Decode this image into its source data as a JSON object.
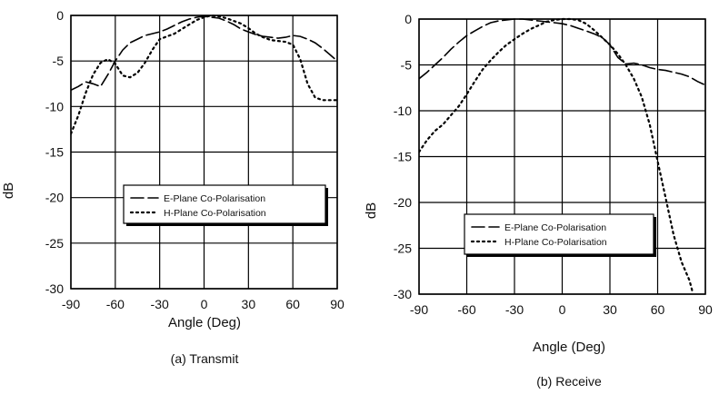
{
  "chart_data": [
    {
      "type": "line",
      "caption": "(a) Transmit",
      "xlabel": "Angle (Deg)",
      "ylabel": "dB",
      "xlim": [
        -90,
        90
      ],
      "ylim": [
        -30,
        0
      ],
      "xticks": [
        -90,
        -60,
        -30,
        0,
        30,
        60,
        90
      ],
      "yticks": [
        0,
        -5,
        -10,
        -15,
        -20,
        -25,
        -30
      ],
      "grid": true,
      "legend": "center-left",
      "series": [
        {
          "name": "E-Plane Co-Polarisation",
          "style": "dashed",
          "x": [
            -90,
            -85,
            -80,
            -75,
            -70,
            -65,
            -60,
            -55,
            -50,
            -45,
            -40,
            -35,
            -30,
            -25,
            -20,
            -15,
            -10,
            -5,
            0,
            5,
            10,
            15,
            20,
            25,
            30,
            35,
            40,
            45,
            50,
            55,
            60,
            65,
            70,
            75,
            80,
            85,
            90
          ],
          "y": [
            -8.2,
            -7.8,
            -7.3,
            -7.5,
            -7.8,
            -6.5,
            -5.0,
            -3.8,
            -3.0,
            -2.6,
            -2.2,
            -2.0,
            -1.8,
            -1.5,
            -1.1,
            -0.7,
            -0.4,
            -0.2,
            -0.1,
            -0.2,
            -0.3,
            -0.6,
            -1.0,
            -1.5,
            -1.8,
            -2.1,
            -2.3,
            -2.4,
            -2.5,
            -2.4,
            -2.2,
            -2.3,
            -2.6,
            -3.0,
            -3.6,
            -4.3,
            -5.0
          ]
        },
        {
          "name": "H-Plane Co-Polarisation",
          "style": "dotted",
          "x": [
            -90,
            -85,
            -80,
            -75,
            -70,
            -65,
            -60,
            -55,
            -50,
            -45,
            -40,
            -35,
            -30,
            -25,
            -20,
            -15,
            -10,
            -5,
            0,
            5,
            10,
            15,
            20,
            25,
            30,
            35,
            40,
            45,
            50,
            55,
            60,
            65,
            70,
            75,
            80,
            85,
            90
          ],
          "y": [
            -13.0,
            -11.0,
            -8.5,
            -6.5,
            -5.2,
            -4.8,
            -5.3,
            -6.6,
            -6.8,
            -6.3,
            -5.2,
            -3.8,
            -2.6,
            -2.3,
            -2.0,
            -1.5,
            -1.0,
            -0.5,
            -0.2,
            0.0,
            -0.1,
            -0.3,
            -0.6,
            -0.9,
            -1.4,
            -2.0,
            -2.4,
            -2.7,
            -2.8,
            -2.9,
            -3.2,
            -4.8,
            -7.5,
            -9.0,
            -9.3,
            -9.3,
            -9.3
          ]
        }
      ]
    },
    {
      "type": "line",
      "caption": "(b)  Receive",
      "xlabel": "Angle (Deg)",
      "ylabel": "dB",
      "xlim": [
        -90,
        90
      ],
      "ylim": [
        -30,
        0
      ],
      "xticks": [
        -90,
        -60,
        -30,
        0,
        30,
        60,
        90
      ],
      "yticks": [
        0,
        -5,
        -10,
        -15,
        -20,
        -25,
        -30
      ],
      "grid": true,
      "legend": "lower-left",
      "series": [
        {
          "name": "E-Plane Co-Polarisation",
          "style": "dashed",
          "x": [
            -90,
            -85,
            -80,
            -75,
            -70,
            -65,
            -60,
            -55,
            -50,
            -45,
            -40,
            -35,
            -30,
            -25,
            -20,
            -15,
            -10,
            -5,
            0,
            5,
            10,
            15,
            20,
            25,
            30,
            35,
            40,
            45,
            50,
            55,
            60,
            65,
            70,
            75,
            80,
            85,
            90
          ],
          "y": [
            -6.5,
            -5.8,
            -5.0,
            -4.2,
            -3.3,
            -2.5,
            -1.8,
            -1.3,
            -0.8,
            -0.4,
            -0.2,
            -0.1,
            0.0,
            0.0,
            -0.1,
            -0.2,
            -0.3,
            -0.4,
            -0.5,
            -0.7,
            -1.0,
            -1.3,
            -1.6,
            -2.0,
            -2.8,
            -4.2,
            -4.9,
            -4.8,
            -5.0,
            -5.3,
            -5.5,
            -5.6,
            -5.8,
            -6.0,
            -6.3,
            -6.8,
            -7.2
          ]
        },
        {
          "name": "H-Plane Co-Polarisation",
          "style": "dotted",
          "x": [
            -90,
            -85,
            -80,
            -75,
            -70,
            -65,
            -60,
            -55,
            -50,
            -45,
            -40,
            -35,
            -30,
            -25,
            -20,
            -15,
            -10,
            -5,
            0,
            5,
            10,
            15,
            20,
            25,
            30,
            35,
            40,
            45,
            50,
            55,
            60,
            65,
            70,
            75,
            80,
            82
          ],
          "y": [
            -14.5,
            -13.2,
            -12.2,
            -11.5,
            -10.5,
            -9.5,
            -8.2,
            -6.8,
            -5.5,
            -4.5,
            -3.6,
            -2.8,
            -2.2,
            -1.6,
            -1.1,
            -0.7,
            -0.3,
            -0.1,
            0.0,
            0.0,
            -0.1,
            -0.5,
            -1.2,
            -2.0,
            -2.8,
            -3.8,
            -5.0,
            -6.5,
            -8.5,
            -11.5,
            -15.5,
            -19.5,
            -23.5,
            -26.5,
            -28.5,
            -29.8
          ]
        }
      ]
    }
  ]
}
